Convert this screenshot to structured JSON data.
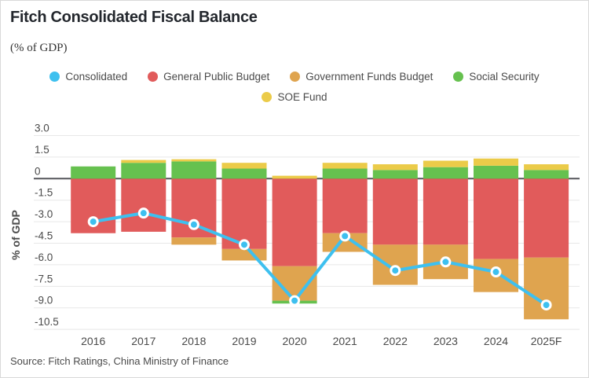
{
  "header": {
    "title": "Fitch Consolidated Fiscal Balance",
    "subtitle": "(% of GDP)"
  },
  "legend": {
    "rows": [
      [
        {
          "label": "Consolidated",
          "color": "#3EC0EF"
        },
        {
          "label": "General Public Budget",
          "color": "#E15B5B"
        },
        {
          "label": "Government Funds Budget",
          "color": "#DFA44F"
        },
        {
          "label": "Social Security",
          "color": "#66C14F"
        }
      ],
      [
        {
          "label": "SOE Fund",
          "color": "#EBCB49"
        }
      ]
    ]
  },
  "chart_data": {
    "type": "bar",
    "subtype": "stacked-bars-with-line-overlay",
    "title": "Fitch Consolidated Fiscal Balance",
    "units": "% of GDP",
    "categories": [
      "2016",
      "2017",
      "2018",
      "2019",
      "2020",
      "2021",
      "2022",
      "2023",
      "2024",
      "2025F"
    ],
    "series": [
      {
        "name": "General Public Budget",
        "color": "#E15B5B",
        "values": [
          -3.8,
          -3.7,
          -4.1,
          -4.9,
          -6.1,
          -3.8,
          -4.6,
          -4.6,
          -5.6,
          -5.5
        ]
      },
      {
        "name": "Government Funds Budget",
        "color": "#DFA44F",
        "values": [
          0,
          0,
          -0.5,
          -0.8,
          -2.4,
          -1.3,
          -2.8,
          -2.4,
          -2.3,
          -4.3
        ]
      },
      {
        "name": "Social Security",
        "color": "#66C14F",
        "values": [
          0.85,
          1.1,
          1.2,
          0.7,
          -0.2,
          0.7,
          0.6,
          0.8,
          0.9,
          0.6
        ]
      },
      {
        "name": "SOE Fund",
        "color": "#EBCB49",
        "values": [
          0,
          0.2,
          0.15,
          0.4,
          0.2,
          0.4,
          0.4,
          0.45,
          0.5,
          0.4
        ]
      }
    ],
    "line_series": {
      "name": "Consolidated",
      "color": "#3EC0EF",
      "marker_ring": "#FFFFFF",
      "values": [
        -3.0,
        -2.4,
        -3.2,
        -4.6,
        -8.5,
        -4.0,
        -6.4,
        -5.8,
        -6.5,
        -8.8
      ]
    },
    "ylabel": "% of GDP",
    "ylim": [
      -10.5,
      3.0
    ],
    "ytick_labels": [
      "3.0",
      "1.5",
      "0",
      "-1.5",
      "-3.0",
      "-4.5",
      "-6.0",
      "-7.5",
      "-9.0",
      "-10.5"
    ],
    "grid": "horizontal",
    "zero_line": true,
    "legend_position": "top"
  },
  "footer": {
    "source": "Source: Fitch Ratings, China Ministry of Finance"
  }
}
